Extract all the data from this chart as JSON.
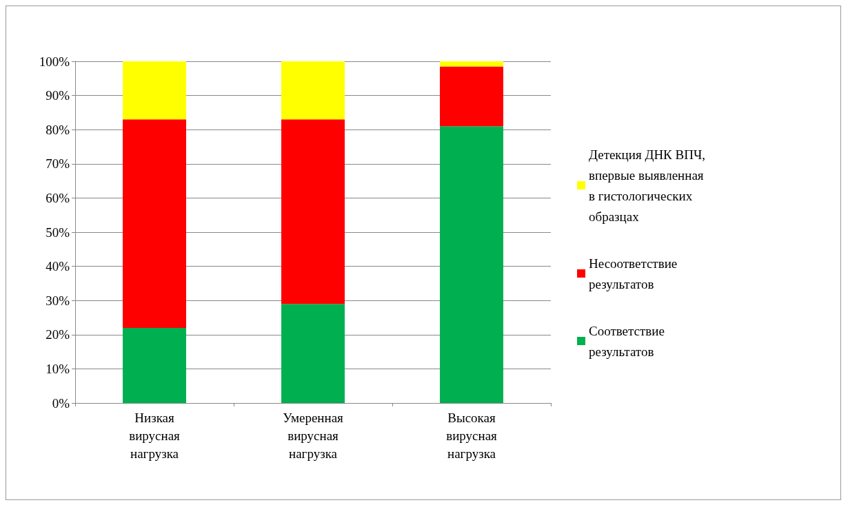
{
  "chart_data": {
    "type": "bar",
    "stacked": true,
    "categories": [
      "Низкая вирусная нагрузка",
      "Умеренная вирусная нагрузка",
      "Высокая вирусная нагрузка"
    ],
    "series": [
      {
        "name": "Соответствие результатов",
        "color": "#00b050",
        "values": [
          22,
          29,
          81
        ]
      },
      {
        "name": "Несоответствие результатов",
        "color": "#ff0000",
        "values": [
          61,
          54,
          17.5
        ]
      },
      {
        "name": "Детекция ДНК ВПЧ, впервые выявленная в гистологических образцах",
        "color": "#ffff00",
        "values": [
          17,
          17,
          1.5
        ]
      }
    ],
    "ylim": [
      0,
      100
    ],
    "yticks": [
      {
        "value": 0,
        "label": "0%"
      },
      {
        "value": 10,
        "label": "10%"
      },
      {
        "value": 20,
        "label": "20%"
      },
      {
        "value": 30,
        "label": "30%"
      },
      {
        "value": 40,
        "label": "40%"
      },
      {
        "value": 50,
        "label": "50%"
      },
      {
        "value": 60,
        "label": "60%"
      },
      {
        "value": 70,
        "label": "70%"
      },
      {
        "value": 80,
        "label": "80%"
      },
      {
        "value": 90,
        "label": "90%"
      },
      {
        "value": 100,
        "label": "100%"
      }
    ],
    "grid": "y",
    "legend": "right"
  }
}
